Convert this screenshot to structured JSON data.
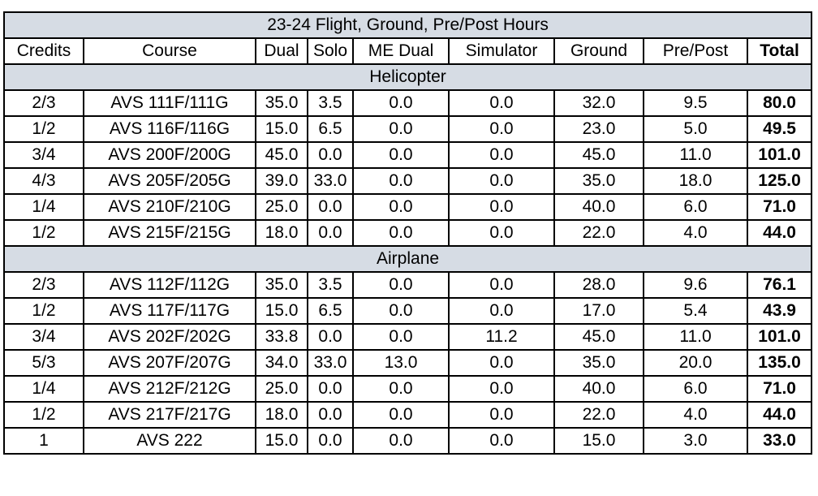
{
  "title": "23-24 Flight, Ground, Pre/Post Hours",
  "columns": [
    "Credits",
    "Course",
    "Dual",
    "Solo",
    "ME Dual",
    "Simulator",
    "Ground",
    "Pre/Post",
    "Total"
  ],
  "sections": [
    {
      "name": "Helicopter",
      "rows": [
        [
          "2/3",
          "AVS 111F/111G",
          "35.0",
          "3.5",
          "0.0",
          "0.0",
          "32.0",
          "9.5",
          "80.0"
        ],
        [
          "1/2",
          "AVS 116F/116G",
          "15.0",
          "6.5",
          "0.0",
          "0.0",
          "23.0",
          "5.0",
          "49.5"
        ],
        [
          "3/4",
          "AVS 200F/200G",
          "45.0",
          "0.0",
          "0.0",
          "0.0",
          "45.0",
          "11.0",
          "101.0"
        ],
        [
          "4/3",
          "AVS 205F/205G",
          "39.0",
          "33.0",
          "0.0",
          "0.0",
          "35.0",
          "18.0",
          "125.0"
        ],
        [
          "1/4",
          "AVS 210F/210G",
          "25.0",
          "0.0",
          "0.0",
          "0.0",
          "40.0",
          "6.0",
          "71.0"
        ],
        [
          "1/2",
          "AVS 215F/215G",
          "18.0",
          "0.0",
          "0.0",
          "0.0",
          "22.0",
          "4.0",
          "44.0"
        ]
      ]
    },
    {
      "name": "Airplane",
      "rows": [
        [
          "2/3",
          "AVS 112F/112G",
          "35.0",
          "3.5",
          "0.0",
          "0.0",
          "28.0",
          "9.6",
          "76.1"
        ],
        [
          "1/2",
          "AVS 117F/117G",
          "15.0",
          "6.5",
          "0.0",
          "0.0",
          "17.0",
          "5.4",
          "43.9"
        ],
        [
          "3/4",
          "AVS 202F/202G",
          "33.8",
          "0.0",
          "0.0",
          "11.2",
          "45.0",
          "11.0",
          "101.0"
        ],
        [
          "5/3",
          "AVS 207F/207G",
          "34.0",
          "33.0",
          "13.0",
          "0.0",
          "35.0",
          "20.0",
          "135.0"
        ],
        [
          "1/4",
          "AVS 212F/212G",
          "25.0",
          "0.0",
          "0.0",
          "0.0",
          "40.0",
          "6.0",
          "71.0"
        ],
        [
          "1/2",
          "AVS 217F/217G",
          "18.0",
          "0.0",
          "0.0",
          "0.0",
          "22.0",
          "4.0",
          "44.0"
        ],
        [
          "1",
          "AVS 222",
          "15.0",
          "0.0",
          "0.0",
          "0.0",
          "15.0",
          "3.0",
          "33.0"
        ]
      ]
    }
  ]
}
